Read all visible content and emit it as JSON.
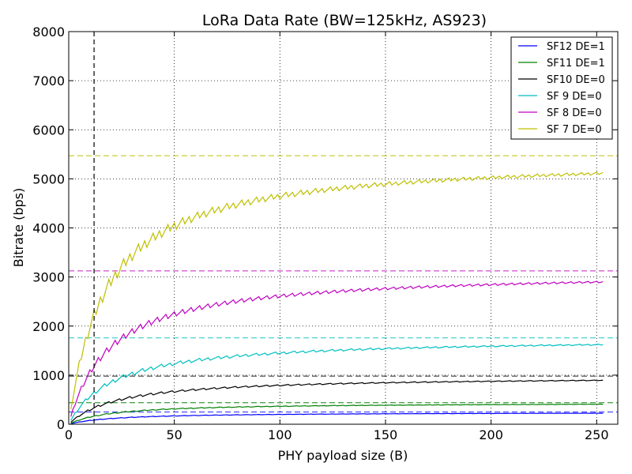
{
  "chart_data": {
    "type": "line",
    "title": "LoRa Data Rate (BW=125kHz, AS923)",
    "xlabel": "PHY payload size (B)",
    "ylabel": "Bitrate (bps)",
    "xlim": [
      0,
      260
    ],
    "ylim": [
      0,
      8000
    ],
    "xticks": [
      0,
      50,
      100,
      150,
      200,
      250
    ],
    "yticks": [
      0,
      1000,
      2000,
      3000,
      4000,
      5000,
      6000,
      7000,
      8000
    ],
    "grid": true,
    "legend_position": "top-right",
    "vline_x": 12,
    "payload_range": [
      1,
      253
    ],
    "series": [
      {
        "name": "SF12 DE=1",
        "color": "#0000ff",
        "sf": 12,
        "de": 1,
        "nominal_bps": 250
      },
      {
        "name": "SF11 DE=1",
        "color": "#008000",
        "sf": 11,
        "de": 1,
        "nominal_bps": 440
      },
      {
        "name": "SF10 DE=0",
        "color": "#000000",
        "sf": 10,
        "de": 0,
        "nominal_bps": 980
      },
      {
        "name": "SF 9 DE=0",
        "color": "#00bfbf",
        "sf": 9,
        "de": 0,
        "nominal_bps": 1760
      },
      {
        "name": "SF 8 DE=0",
        "color": "#bf00bf",
        "sf": 8,
        "de": 0,
        "nominal_bps": 3125
      },
      {
        "name": "SF 7 DE=0",
        "color": "#bfbf00",
        "sf": 7,
        "de": 0,
        "nominal_bps": 5470
      }
    ]
  }
}
